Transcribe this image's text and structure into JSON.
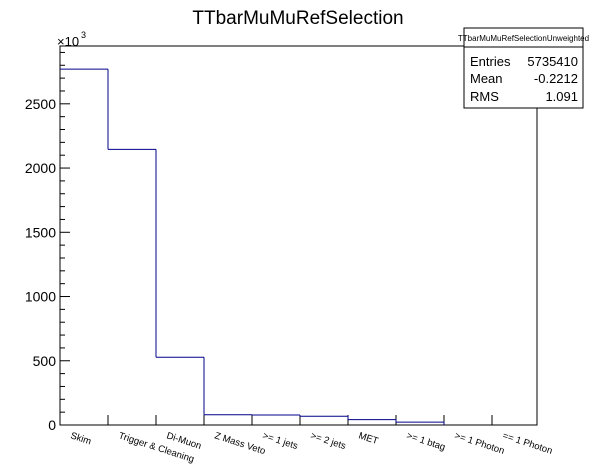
{
  "chart_data": {
    "type": "bar",
    "style": "step-histogram",
    "title": "TTbarMuMuRefSelection",
    "categories": [
      "Skim",
      "Trigger & Cleaning",
      "Di-Muon",
      "Z Mass Veto",
      ">= 1 jets",
      ">= 2 jets",
      "MET",
      ">= 1 btag",
      ">= 1 Photon",
      "== 1 Photon"
    ],
    "values": [
      2770000,
      2145000,
      527000,
      80000,
      78000,
      68000,
      42000,
      22000,
      0,
      0
    ],
    "y_scale_label": "×10",
    "y_scale_exponent": "3",
    "y_scale_factor": 1000,
    "ylim": [
      0,
      2950000
    ],
    "yticks": [
      0,
      500,
      1000,
      1500,
      2000,
      2500
    ],
    "grid": false,
    "line_color": "#00008b",
    "stats_box": {
      "name": "TTbarMuMuRefSelectionUnweighted",
      "entries_label": "Entries",
      "entries_value": "5735410",
      "mean_label": "Mean",
      "mean_value": "-0.2212",
      "rms_label": "RMS",
      "rms_value": "1.091",
      "placement": "top-right"
    }
  }
}
